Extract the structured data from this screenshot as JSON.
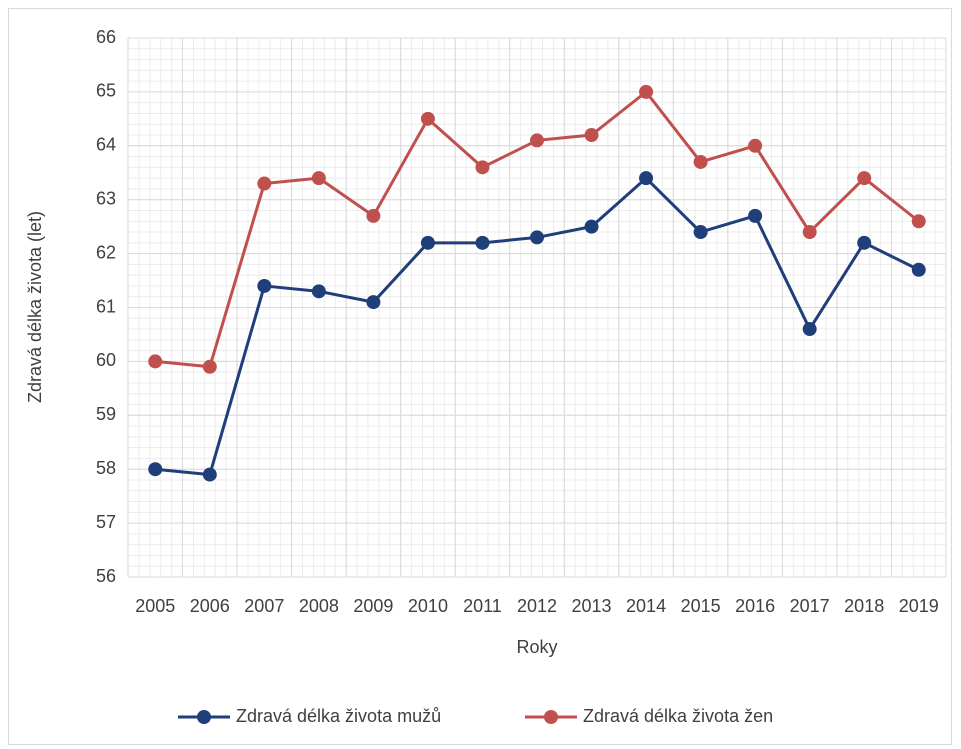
{
  "chart_data": {
    "type": "line",
    "xlabel": "Roky",
    "ylabel": "Zdravá délka života (let)",
    "categories": [
      "2005",
      "2006",
      "2007",
      "2008",
      "2009",
      "2010",
      "2011",
      "2012",
      "2013",
      "2014",
      "2015",
      "2016",
      "2017",
      "2018",
      "2019"
    ],
    "series": [
      {
        "name": "Zdravá délka života mužů",
        "color": "#1f3e7a",
        "values": [
          58.0,
          57.9,
          61.4,
          61.3,
          61.1,
          62.2,
          62.2,
          62.3,
          62.5,
          63.4,
          62.4,
          62.7,
          60.6,
          62.2,
          61.7
        ]
      },
      {
        "name": "Zdravá délka života žen",
        "color": "#c0504d",
        "values": [
          60.0,
          59.9,
          63.3,
          63.4,
          62.7,
          64.5,
          63.6,
          64.1,
          64.2,
          65.0,
          63.7,
          64.0,
          62.4,
          63.4,
          62.6
        ]
      }
    ],
    "ylim": [
      56,
      66
    ],
    "yticks": [
      56,
      57,
      58,
      59,
      60,
      61,
      62,
      63,
      64,
      65,
      66
    ],
    "grid": true,
    "legend": "bottom"
  }
}
